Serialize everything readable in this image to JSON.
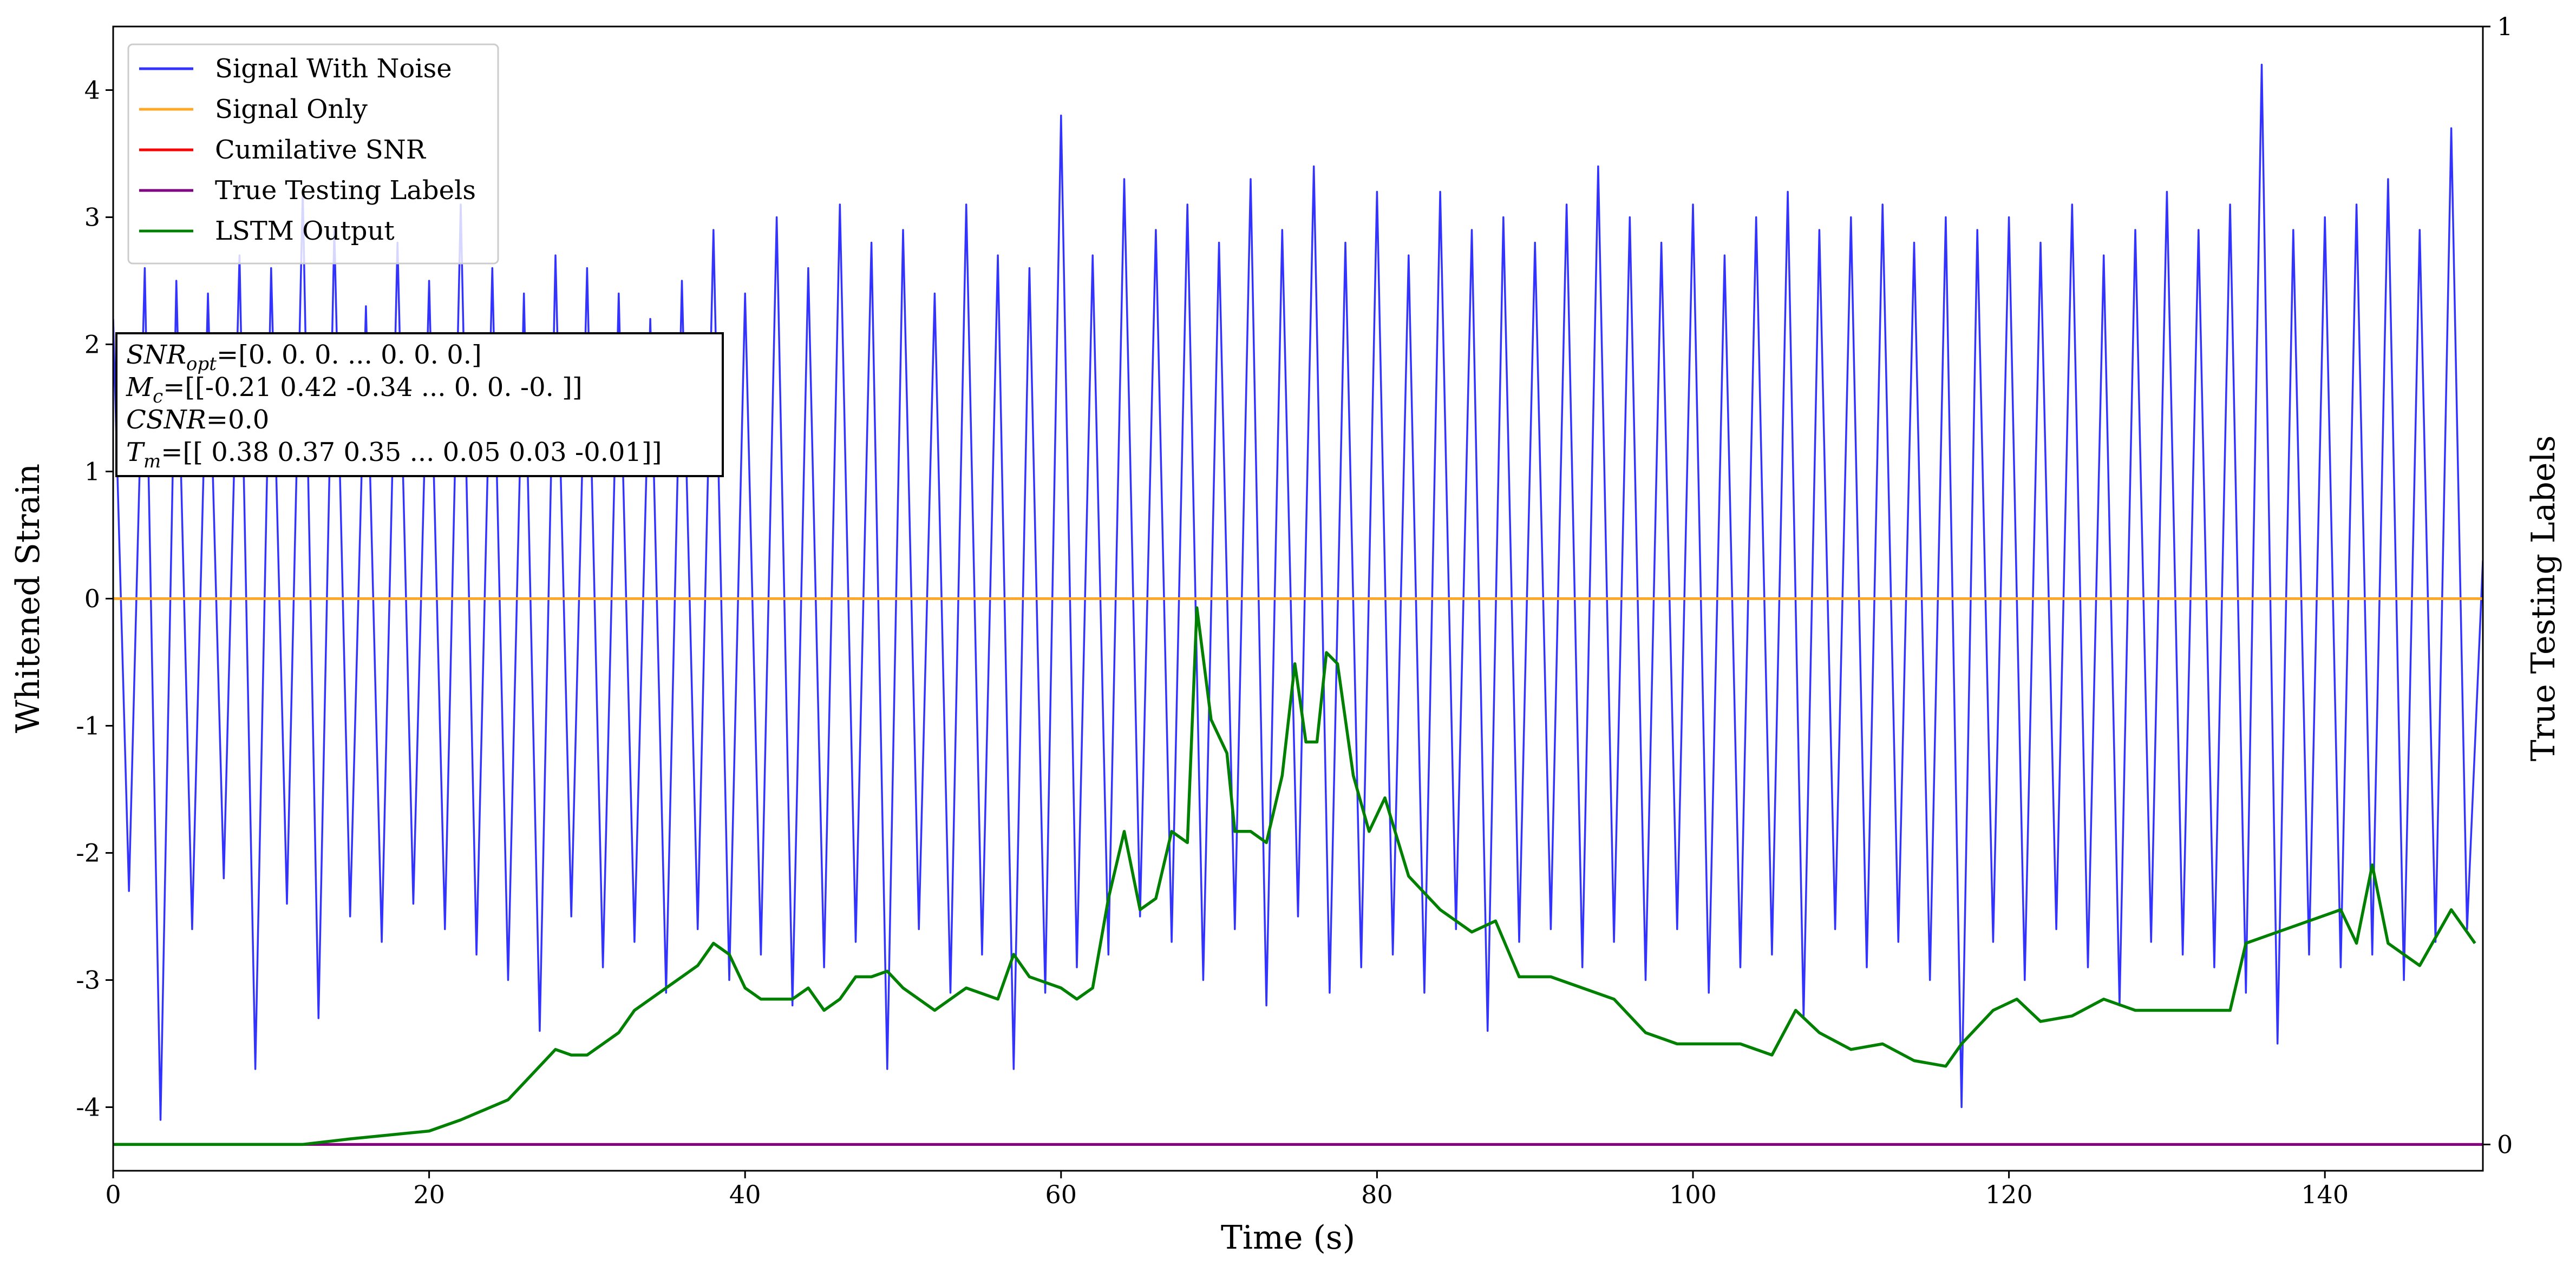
{
  "chart_data": {
    "type": "line",
    "xlabel": "Time (s)",
    "ylabel": "Whitened Strain",
    "y2label": "True Testing Labels",
    "xlim": [
      0,
      150
    ],
    "xticks": [
      0,
      20,
      40,
      60,
      80,
      100,
      120,
      140
    ],
    "ylim": [
      -4.5,
      4.5
    ],
    "yticks": [
      -4,
      -3,
      -2,
      -1,
      0,
      1,
      2,
      3,
      4
    ],
    "y2lim": [
      -0.0235,
      1
    ],
    "y2ticks": [
      0,
      1
    ],
    "legend": "upper left",
    "annotations": [
      {
        "symbol": "SNR",
        "sub": "opt",
        "text": "=[0. 0. 0. ... 0. 0. 0.]"
      },
      {
        "symbol": "M",
        "sub": "c",
        "text": "=[[-0.21  0.42 -0.34 ...  0.    0.   -0.  ]]"
      },
      {
        "symbol": "CSNR",
        "sub": "",
        "text": "=0.0"
      },
      {
        "symbol": "T",
        "sub": "m",
        "text": "=[[ 0.38  0.37  0.35 ...  0.05  0.03 -0.01]]"
      }
    ],
    "series": [
      {
        "name": "Signal With Noise",
        "color": "#3333ff",
        "axis": "y",
        "x": [
          0,
          1,
          2,
          3,
          4,
          5,
          6,
          7,
          8,
          9,
          10,
          11,
          12,
          13,
          14,
          15,
          16,
          17,
          18,
          19,
          20,
          21,
          22,
          23,
          24,
          25,
          26,
          27,
          28,
          29,
          30,
          31,
          32,
          33,
          34,
          35,
          36,
          37,
          38,
          39,
          40,
          41,
          42,
          43,
          44,
          45,
          46,
          47,
          48,
          49,
          50,
          51,
          52,
          53,
          54,
          55,
          56,
          57,
          58,
          59,
          60,
          61,
          62,
          63,
          64,
          65,
          66,
          67,
          68,
          69,
          70,
          71,
          72,
          73,
          74,
          75,
          76,
          77,
          78,
          79,
          80,
          81,
          82,
          83,
          84,
          85,
          86,
          87,
          88,
          89,
          90,
          91,
          92,
          93,
          94,
          95,
          96,
          97,
          98,
          99,
          100,
          101,
          102,
          103,
          104,
          105,
          106,
          107,
          108,
          109,
          110,
          111,
          112,
          113,
          114,
          115,
          116,
          117,
          118,
          119,
          120,
          121,
          122,
          123,
          124,
          125,
          126,
          127,
          128,
          129,
          130,
          131,
          132,
          133,
          134,
          135,
          136,
          137,
          138,
          139,
          140,
          141,
          142,
          143,
          144,
          145,
          146,
          147,
          148,
          149,
          150
        ],
        "values": [
          2.2,
          -2.3,
          2.6,
          -4.1,
          2.5,
          -2.6,
          2.4,
          -2.2,
          2.7,
          -3.7,
          2.6,
          -2.4,
          3.2,
          -3.3,
          2.9,
          -2.5,
          2.3,
          -2.7,
          2.8,
          -2.4,
          2.5,
          -2.6,
          3.1,
          -2.8,
          2.6,
          -3.0,
          2.4,
          -3.4,
          2.7,
          -2.5,
          2.6,
          -2.9,
          2.4,
          -2.7,
          2.2,
          -3.1,
          2.5,
          -2.6,
          2.9,
          -3.0,
          2.4,
          -2.8,
          3.0,
          -3.2,
          2.6,
          -2.9,
          3.1,
          -2.7,
          2.8,
          -3.7,
          2.9,
          -2.6,
          2.4,
          -3.1,
          3.1,
          -2.8,
          2.7,
          -3.7,
          2.6,
          -3.1,
          3.8,
          -2.9,
          2.7,
          -2.8,
          3.3,
          -2.5,
          2.9,
          -2.7,
          3.1,
          -3.0,
          2.8,
          -2.6,
          3.3,
          -3.2,
          2.9,
          -2.5,
          3.4,
          -3.1,
          2.8,
          -2.9,
          3.2,
          -2.8,
          2.7,
          -3.1,
          3.2,
          -2.6,
          2.9,
          -3.4,
          3.0,
          -2.7,
          2.8,
          -2.6,
          3.1,
          -2.9,
          3.4,
          -2.7,
          3.0,
          -3.0,
          2.8,
          -2.6,
          3.1,
          -3.1,
          2.7,
          -2.9,
          3.0,
          -2.8,
          3.2,
          -3.3,
          2.9,
          -2.6,
          3.0,
          -2.9,
          3.1,
          -2.7,
          2.8,
          -3.0,
          3.0,
          -4.0,
          2.9,
          -2.7,
          3.0,
          -3.0,
          2.8,
          -2.6,
          3.1,
          -2.9,
          2.7,
          -3.2,
          2.9,
          -2.7,
          3.2,
          -2.8,
          2.9,
          -2.9,
          3.1,
          -3.1,
          4.2,
          -3.5,
          2.9,
          -2.8,
          3.0,
          -2.9,
          3.1,
          -2.8,
          3.3,
          -3.0,
          2.9,
          -2.7,
          3.7,
          -2.6,
          0.3
        ]
      },
      {
        "name": "Signal Only",
        "color": "#ffa726",
        "axis": "y",
        "x": [
          0,
          150
        ],
        "values": [
          0,
          0
        ]
      },
      {
        "name": "Cumilative SNR",
        "color": "#ff0000",
        "axis": "y2",
        "x": [
          0,
          150
        ],
        "values": [
          0,
          0
        ]
      },
      {
        "name": "True Testing Labels",
        "color": "#800080",
        "axis": "y2",
        "x": [
          0,
          150
        ],
        "values": [
          0,
          0
        ]
      },
      {
        "name": "LSTM Output",
        "color": "#008000",
        "axis": "y2",
        "x": [
          0,
          12,
          15,
          20,
          22,
          25,
          27,
          28,
          29,
          30,
          31,
          32,
          33,
          35,
          36,
          37,
          38,
          39,
          40,
          41,
          43,
          44,
          45,
          46,
          47,
          48,
          49,
          50,
          52,
          54,
          56,
          57,
          58,
          60,
          61,
          62,
          63,
          64,
          65,
          66,
          67,
          68,
          68.6,
          69.5,
          70.5,
          71,
          72,
          73,
          74,
          74.8,
          75.5,
          76.2,
          76.8,
          77.5,
          78.5,
          79.5,
          80.5,
          82,
          84,
          86,
          87.5,
          89,
          91,
          93,
          95,
          97,
          99,
          101,
          103,
          105,
          106.5,
          108,
          110,
          112,
          114,
          116,
          117,
          119,
          120.5,
          122,
          124,
          126,
          128,
          130,
          132,
          134,
          135,
          137,
          139,
          141,
          142,
          143,
          144,
          146,
          148,
          149.5
        ],
        "values": [
          0,
          0,
          0.005,
          0.012,
          0.022,
          0.04,
          0.07,
          0.085,
          0.08,
          0.08,
          0.09,
          0.1,
          0.12,
          0.14,
          0.15,
          0.16,
          0.18,
          0.17,
          0.14,
          0.13,
          0.13,
          0.14,
          0.12,
          0.13,
          0.15,
          0.15,
          0.155,
          0.14,
          0.12,
          0.14,
          0.13,
          0.17,
          0.15,
          0.14,
          0.13,
          0.14,
          0.22,
          0.28,
          0.21,
          0.22,
          0.28,
          0.27,
          0.48,
          0.38,
          0.35,
          0.28,
          0.28,
          0.27,
          0.33,
          0.43,
          0.36,
          0.36,
          0.44,
          0.43,
          0.33,
          0.28,
          0.31,
          0.24,
          0.21,
          0.19,
          0.2,
          0.15,
          0.15,
          0.14,
          0.13,
          0.1,
          0.09,
          0.09,
          0.09,
          0.08,
          0.12,
          0.1,
          0.085,
          0.09,
          0.075,
          0.07,
          0.09,
          0.12,
          0.13,
          0.11,
          0.115,
          0.13,
          0.12,
          0.12,
          0.12,
          0.12,
          0.18,
          0.19,
          0.2,
          0.21,
          0.18,
          0.25,
          0.18,
          0.16,
          0.21,
          0.18
        ]
      }
    ]
  }
}
